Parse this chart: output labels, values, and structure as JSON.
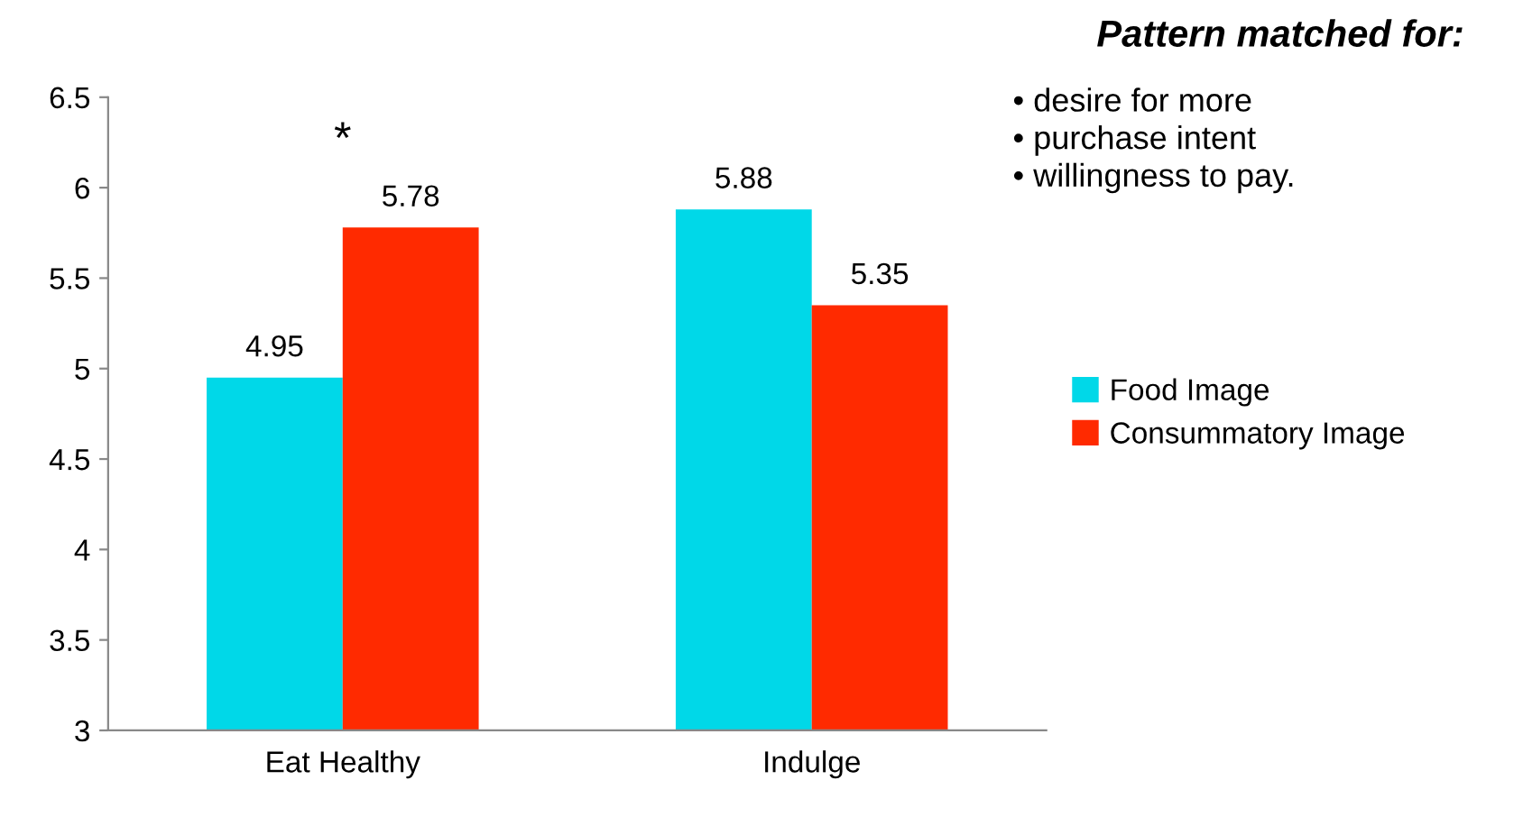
{
  "chart_data": {
    "type": "bar",
    "categories": [
      "Eat Healthy",
      "Indulge"
    ],
    "series": [
      {
        "name": "Food Image",
        "color": "#00d8e8",
        "values": [
          4.95,
          5.88
        ]
      },
      {
        "name": "Consummatory Image",
        "color": "#ff2a00",
        "values": [
          5.78,
          5.35
        ]
      }
    ],
    "ylim": [
      3,
      6.5
    ],
    "yticks": [
      3,
      3.5,
      4,
      4.5,
      5,
      5.5,
      6,
      6.5
    ],
    "grid": false,
    "legend": "right",
    "data_labels": true,
    "annotations": [
      "*",
      "Pattern matched for:",
      "• desire for more",
      "• purchase intent",
      "• willingness to pay."
    ]
  }
}
